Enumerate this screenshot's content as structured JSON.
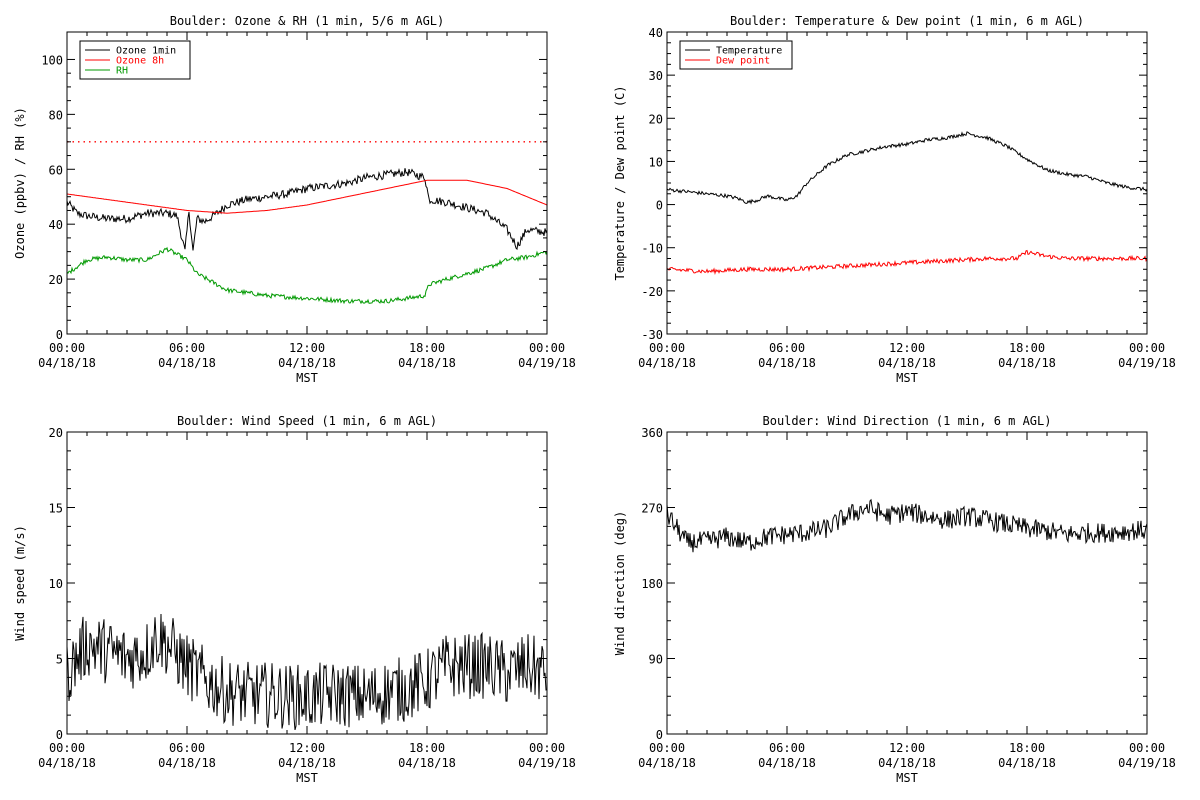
{
  "chart_data": [
    {
      "type": "line",
      "title": "Boulder: Ozone & RH (1 min, 5/6 m AGL)",
      "xlabel": "MST",
      "ylabel": "Ozone (ppbv) / RH (%)",
      "xlim": [
        "04/18/18 00:00",
        "04/19/18 00:00"
      ],
      "ylim": [
        0,
        110
      ],
      "yticks": [
        0,
        20,
        40,
        60,
        80,
        100
      ],
      "xticks": [
        {
          "time": "00:00",
          "date": "04/18/18"
        },
        {
          "time": "06:00",
          "date": "04/18/18"
        },
        {
          "time": "12:00",
          "date": "04/18/18"
        },
        {
          "time": "18:00",
          "date": "04/18/18"
        },
        {
          "time": "00:00",
          "date": "04/19/18"
        }
      ],
      "legend_position": "top-left",
      "reference_lines": [
        {
          "y": 70,
          "color": "#ff0000",
          "style": "dotted"
        }
      ],
      "series": [
        {
          "name": "Ozone 1min",
          "color": "#000000",
          "noise": 1.5,
          "x_hours": [
            0,
            0.5,
            1,
            2,
            3,
            4,
            5,
            5.5,
            5.9,
            6.1,
            6.3,
            6.5,
            6.9,
            7.5,
            8,
            9,
            10,
            11,
            12,
            13,
            14,
            15,
            16,
            17,
            17.9,
            18.1,
            19,
            20,
            21,
            22,
            22.5,
            23,
            24
          ],
          "values": [
            48,
            44,
            43,
            42,
            42,
            44,
            44,
            43,
            30,
            45,
            30,
            42,
            41,
            44,
            47,
            49,
            50,
            51,
            53,
            54,
            55,
            57,
            58,
            59,
            57,
            49,
            48,
            46,
            44,
            38,
            32,
            38,
            37
          ]
        },
        {
          "name": "Ozone 8h",
          "color": "#ff0000",
          "noise": 0,
          "x_hours": [
            0,
            2,
            4,
            6,
            8,
            10,
            12,
            14,
            16,
            18,
            20,
            22,
            24
          ],
          "values": [
            51,
            49,
            47,
            45,
            44,
            45,
            47,
            50,
            53,
            56,
            56,
            53,
            47
          ]
        },
        {
          "name": "RH",
          "color": "#009900",
          "noise": 0.8,
          "x_hours": [
            0,
            1,
            2,
            3,
            4,
            5,
            6,
            6.5,
            7,
            7.5,
            8,
            9,
            10,
            12,
            14,
            16,
            17,
            17.9,
            18.1,
            19,
            20,
            21,
            22,
            23,
            24
          ],
          "values": [
            22,
            27,
            28,
            27,
            27,
            31,
            27,
            22,
            20,
            18,
            16,
            15,
            14,
            13,
            12,
            12,
            13,
            14,
            18,
            20,
            22,
            24,
            27,
            28,
            30
          ]
        }
      ]
    },
    {
      "type": "line",
      "title": "Boulder: Temperature & Dew point (1 min, 6 m AGL)",
      "xlabel": "MST",
      "ylabel": "Temperature / Dew point (C)",
      "xlim": [
        "04/18/18 00:00",
        "04/19/18 00:00"
      ],
      "ylim": [
        -30,
        40
      ],
      "yticks": [
        -30,
        -20,
        -10,
        0,
        10,
        20,
        30,
        40
      ],
      "xticks": [
        {
          "time": "00:00",
          "date": "04/18/18"
        },
        {
          "time": "06:00",
          "date": "04/18/18"
        },
        {
          "time": "12:00",
          "date": "04/18/18"
        },
        {
          "time": "18:00",
          "date": "04/18/18"
        },
        {
          "time": "00:00",
          "date": "04/19/18"
        }
      ],
      "legend_position": "top-left",
      "series": [
        {
          "name": "Temperature",
          "color": "#000000",
          "noise": 0.4,
          "x_hours": [
            0,
            1,
            2,
            3,
            3.5,
            4,
            4.5,
            5,
            5.5,
            6,
            6.5,
            7,
            8,
            9,
            10,
            11,
            12,
            13,
            14,
            15,
            16,
            17,
            18,
            19,
            20,
            21,
            22,
            23,
            24
          ],
          "values": [
            3.5,
            3,
            2.5,
            2,
            1.5,
            0.5,
            1,
            2,
            1.5,
            1,
            2,
            5,
            9,
            11.5,
            12.5,
            13.5,
            14,
            15,
            15.5,
            16.5,
            15.5,
            13.5,
            10.5,
            8,
            7,
            6.5,
            5,
            4,
            3.5
          ]
        },
        {
          "name": "Dew point",
          "color": "#ff0000",
          "noise": 0.5,
          "x_hours": [
            0,
            2,
            4,
            6,
            8,
            10,
            12,
            14,
            16,
            17.5,
            18,
            19,
            20,
            22,
            24
          ],
          "values": [
            -15,
            -15.5,
            -15,
            -15,
            -14.5,
            -14,
            -13.5,
            -13,
            -12.5,
            -12.5,
            -11,
            -12,
            -12.5,
            -12.5,
            -12.5
          ]
        }
      ]
    },
    {
      "type": "line",
      "title": "Boulder: Wind Speed (1 min, 6 m AGL)",
      "xlabel": "MST",
      "ylabel": "Wind speed (m/s)",
      "xlim": [
        "04/18/18 00:00",
        "04/19/18 00:00"
      ],
      "ylim": [
        0,
        20
      ],
      "yticks": [
        0,
        5,
        10,
        15,
        20
      ],
      "xticks": [
        {
          "time": "00:00",
          "date": "04/18/18"
        },
        {
          "time": "06:00",
          "date": "04/18/18"
        },
        {
          "time": "12:00",
          "date": "04/18/18"
        },
        {
          "time": "18:00",
          "date": "04/18/18"
        },
        {
          "time": "00:00",
          "date": "04/19/18"
        }
      ],
      "series": [
        {
          "color": "#000000",
          "noise": 2.2,
          "x_hours": [
            0,
            1,
            2,
            3,
            4,
            4.5,
            5,
            6,
            7,
            8,
            9,
            10,
            11,
            12,
            13,
            14,
            15,
            16,
            17,
            18,
            19,
            20,
            21,
            22,
            23,
            24
          ],
          "values": [
            4,
            6,
            5.5,
            5,
            5.5,
            6.5,
            6,
            4.5,
            3.5,
            2.8,
            2.6,
            2.6,
            2.5,
            2.4,
            2.6,
            2.6,
            2.4,
            2.8,
            3,
            3.5,
            4.5,
            4.5,
            4.5,
            4,
            4.5,
            4
          ]
        }
      ]
    },
    {
      "type": "line",
      "title": "Boulder: Wind Direction (1 min, 6 m AGL)",
      "xlabel": "MST",
      "ylabel": "Wind direction (deg)",
      "xlim": [
        "04/18/18 00:00",
        "04/19/18 00:00"
      ],
      "ylim": [
        0,
        360
      ],
      "yticks": [
        0,
        90,
        180,
        270,
        360
      ],
      "xticks": [
        {
          "time": "00:00",
          "date": "04/18/18"
        },
        {
          "time": "06:00",
          "date": "04/18/18"
        },
        {
          "time": "12:00",
          "date": "04/18/18"
        },
        {
          "time": "18:00",
          "date": "04/18/18"
        },
        {
          "time": "00:00",
          "date": "04/19/18"
        }
      ],
      "series": [
        {
          "color": "#000000",
          "noise": 12,
          "x_hours": [
            0,
            1,
            2,
            3,
            4,
            5,
            6,
            7,
            8,
            9,
            10,
            11,
            12,
            13,
            14,
            15,
            16,
            17,
            18,
            19,
            20,
            21,
            22,
            23,
            24
          ],
          "values": [
            262,
            228,
            230,
            235,
            228,
            235,
            238,
            240,
            245,
            260,
            270,
            260,
            265,
            260,
            255,
            260,
            255,
            250,
            245,
            242,
            238,
            240,
            240,
            242,
            243
          ]
        }
      ]
    }
  ]
}
